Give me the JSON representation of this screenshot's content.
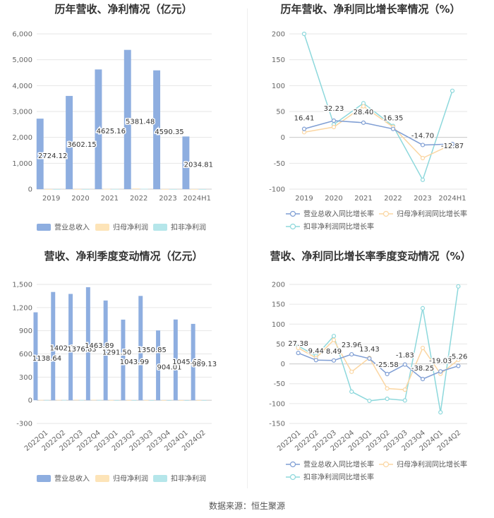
{
  "source": "数据来源：恒生聚源",
  "chart_data": [
    {
      "id": "annual-amounts",
      "type": "bar",
      "title": "历年营收、净利情况（亿元）",
      "categories": [
        "2019",
        "2020",
        "2021",
        "2022",
        "2023",
        "2024H1"
      ],
      "series": [
        {
          "name": "营业总收入",
          "color": "#8eaee0",
          "values": [
            2724.12,
            3602.15,
            4625.16,
            5381.48,
            4590.35,
            2034.81
          ],
          "labels": [
            "2724.12",
            "3602.15",
            "4625.16",
            "5381.48",
            "4590.35",
            "2034.81"
          ]
        },
        {
          "name": "归母净利润",
          "color": "#fde4b8",
          "values": [
            1,
            3,
            8,
            26,
            3,
            2
          ]
        },
        {
          "name": "扣非净利润",
          "color": "#b5e6ea",
          "values": [
            1,
            2,
            5,
            14,
            2,
            1
          ]
        }
      ],
      "ylim": [
        0,
        6000
      ],
      "yticks": [
        0,
        1000,
        2000,
        3000,
        4000,
        5000,
        6000
      ],
      "ytick_labels": [
        "0",
        "1,000",
        "2,000",
        "3,000",
        "4,000",
        "5,000",
        "6,000"
      ],
      "legend": "bottom"
    },
    {
      "id": "annual-growth",
      "type": "line",
      "title": "历年营收、净利同比增长率情况（%）",
      "categories": [
        "2019",
        "2020",
        "2021",
        "2022",
        "2023",
        "2024H1"
      ],
      "series": [
        {
          "name": "营业总收入同比增长率",
          "color": "#7f9ed4",
          "values": [
            16.41,
            32.23,
            28.4,
            16.35,
            -14.7,
            -12.87
          ],
          "labels": [
            "16.41",
            "32.23",
            "28.40",
            "16.35",
            "-14.70",
            "-12.87"
          ]
        },
        {
          "name": "归母净利润同比增长率",
          "color": "#fbd6a2",
          "values": [
            10,
            20,
            60,
            20,
            -40,
            -13
          ]
        },
        {
          "name": "扣非净利润同比增长率",
          "color": "#8dd8dc",
          "values": [
            200,
            25,
            66,
            22,
            -82,
            90
          ]
        }
      ],
      "ylim": [
        -100,
        200
      ],
      "yticks": [
        -100,
        -50,
        0,
        50,
        100,
        150,
        200
      ],
      "ytick_labels": [
        "-100",
        "-50",
        "0",
        "50",
        "100",
        "150",
        "200"
      ],
      "legend": "bottom"
    },
    {
      "id": "quarterly-amounts",
      "type": "bar",
      "title": "营收、净利季度变动情况（亿元）",
      "categories": [
        "2022Q1",
        "2022Q2",
        "2022Q3",
        "2022Q4",
        "2023Q1",
        "2023Q2",
        "2023Q3",
        "2023Q4",
        "2024Q1",
        "2024Q2"
      ],
      "series": [
        {
          "name": "营业总收入",
          "color": "#8eaee0",
          "values": [
            1138.64,
            1402.13,
            1376.83,
            1463.89,
            1291.5,
            1043.99,
            1350.85,
            904.01,
            1045.68,
            989.13
          ],
          "labels": [
            "1138.64",
            "1402.13",
            "1376.83",
            "1463.89",
            "1291.50",
            "1043.99",
            "1350.85",
            "904.01",
            "1045.68",
            "989.13"
          ]
        },
        {
          "name": "归母净利润",
          "color": "#fde4b8",
          "values": [
            5,
            6,
            8,
            7,
            3,
            2,
            2,
            1,
            1,
            1
          ]
        },
        {
          "name": "扣非净利润",
          "color": "#b5e6ea",
          "values": [
            3,
            4,
            5,
            3,
            1,
            1,
            1,
            0,
            0,
            1
          ]
        }
      ],
      "ylim": [
        -300,
        1500
      ],
      "yticks": [
        -300,
        0,
        300,
        600,
        900,
        1200,
        1500
      ],
      "ytick_labels": [
        "-300",
        "0",
        "300",
        "600",
        "900",
        "1,200",
        "1,500"
      ],
      "legend": "bottom"
    },
    {
      "id": "quarterly-growth",
      "type": "line",
      "title": "营收、净利同比增长率季度变动情况（%）",
      "categories": [
        "2022Q1",
        "2022Q2",
        "2022Q3",
        "2022Q4",
        "2023Q1",
        "2023Q2",
        "2023Q3",
        "2023Q4",
        "2024Q1",
        "2024Q2"
      ],
      "series": [
        {
          "name": "营业总收入同比增长率",
          "color": "#7f9ed4",
          "values": [
            27.38,
            9.44,
            8.49,
            23.96,
            13.43,
            -25.58,
            -1.83,
            -38.25,
            -19.03,
            -5.26
          ],
          "labels": [
            "27.38",
            "9.44",
            "8.49",
            "23.96",
            "13.43",
            "-25.58",
            "-1.83",
            "-38.25",
            "-19.03",
            "-5.26"
          ]
        },
        {
          "name": "归母净利润同比增长率",
          "color": "#fbd6a2",
          "values": [
            40,
            15,
            60,
            -20,
            15,
            -62,
            -65,
            40,
            -25,
            10
          ]
        },
        {
          "name": "扣非净利润同比增长率",
          "color": "#8dd8dc",
          "values": [
            45,
            20,
            70,
            -70,
            -93,
            -88,
            -92,
            140,
            -122,
            195
          ]
        }
      ],
      "ylim": [
        -150,
        200
      ],
      "yticks": [
        -150,
        -100,
        -50,
        0,
        50,
        100,
        150,
        200
      ],
      "ytick_labels": [
        "-150",
        "-100",
        "-50",
        "0",
        "50",
        "100",
        "150",
        "200"
      ],
      "legend": "bottom"
    }
  ]
}
